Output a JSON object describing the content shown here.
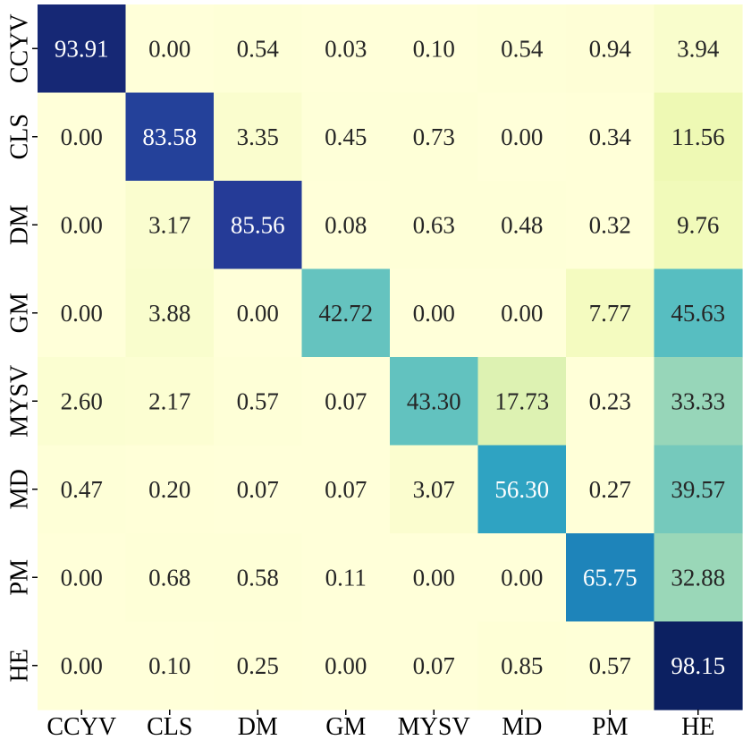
{
  "chart_data": {
    "type": "heatmap",
    "title": "",
    "xlabel": "",
    "ylabel": "",
    "x_categories": [
      "CCYV",
      "CLS",
      "DM",
      "GM",
      "MYSV",
      "MD",
      "PM",
      "HE"
    ],
    "y_categories": [
      "CCYV",
      "CLS",
      "DM",
      "GM",
      "MYSV",
      "MD",
      "PM",
      "HE"
    ],
    "values": [
      [
        93.91,
        0.0,
        0.54,
        0.03,
        0.1,
        0.54,
        0.94,
        3.94
      ],
      [
        0.0,
        83.58,
        3.35,
        0.45,
        0.73,
        0.0,
        0.34,
        11.56
      ],
      [
        0.0,
        3.17,
        85.56,
        0.08,
        0.63,
        0.48,
        0.32,
        9.76
      ],
      [
        0.0,
        3.88,
        0.0,
        42.72,
        0.0,
        0.0,
        7.77,
        45.63
      ],
      [
        2.6,
        2.17,
        0.57,
        0.07,
        43.3,
        17.73,
        0.23,
        33.33
      ],
      [
        0.47,
        0.2,
        0.07,
        0.07,
        3.07,
        56.3,
        0.27,
        39.57
      ],
      [
        0.0,
        0.68,
        0.58,
        0.11,
        0.0,
        0.0,
        65.75,
        32.88
      ],
      [
        0.0,
        0.1,
        0.25,
        0.0,
        0.07,
        0.85,
        0.57,
        98.15
      ]
    ],
    "value_format": "2 decimals",
    "colormap": "YlGnBu",
    "value_range": [
      0,
      100
    ],
    "colors": {
      "low": "#ffffd9",
      "high": "#081d58",
      "text_dark": "#262626",
      "text_light": "#ffffff"
    },
    "grid": false,
    "colorbar": false
  }
}
